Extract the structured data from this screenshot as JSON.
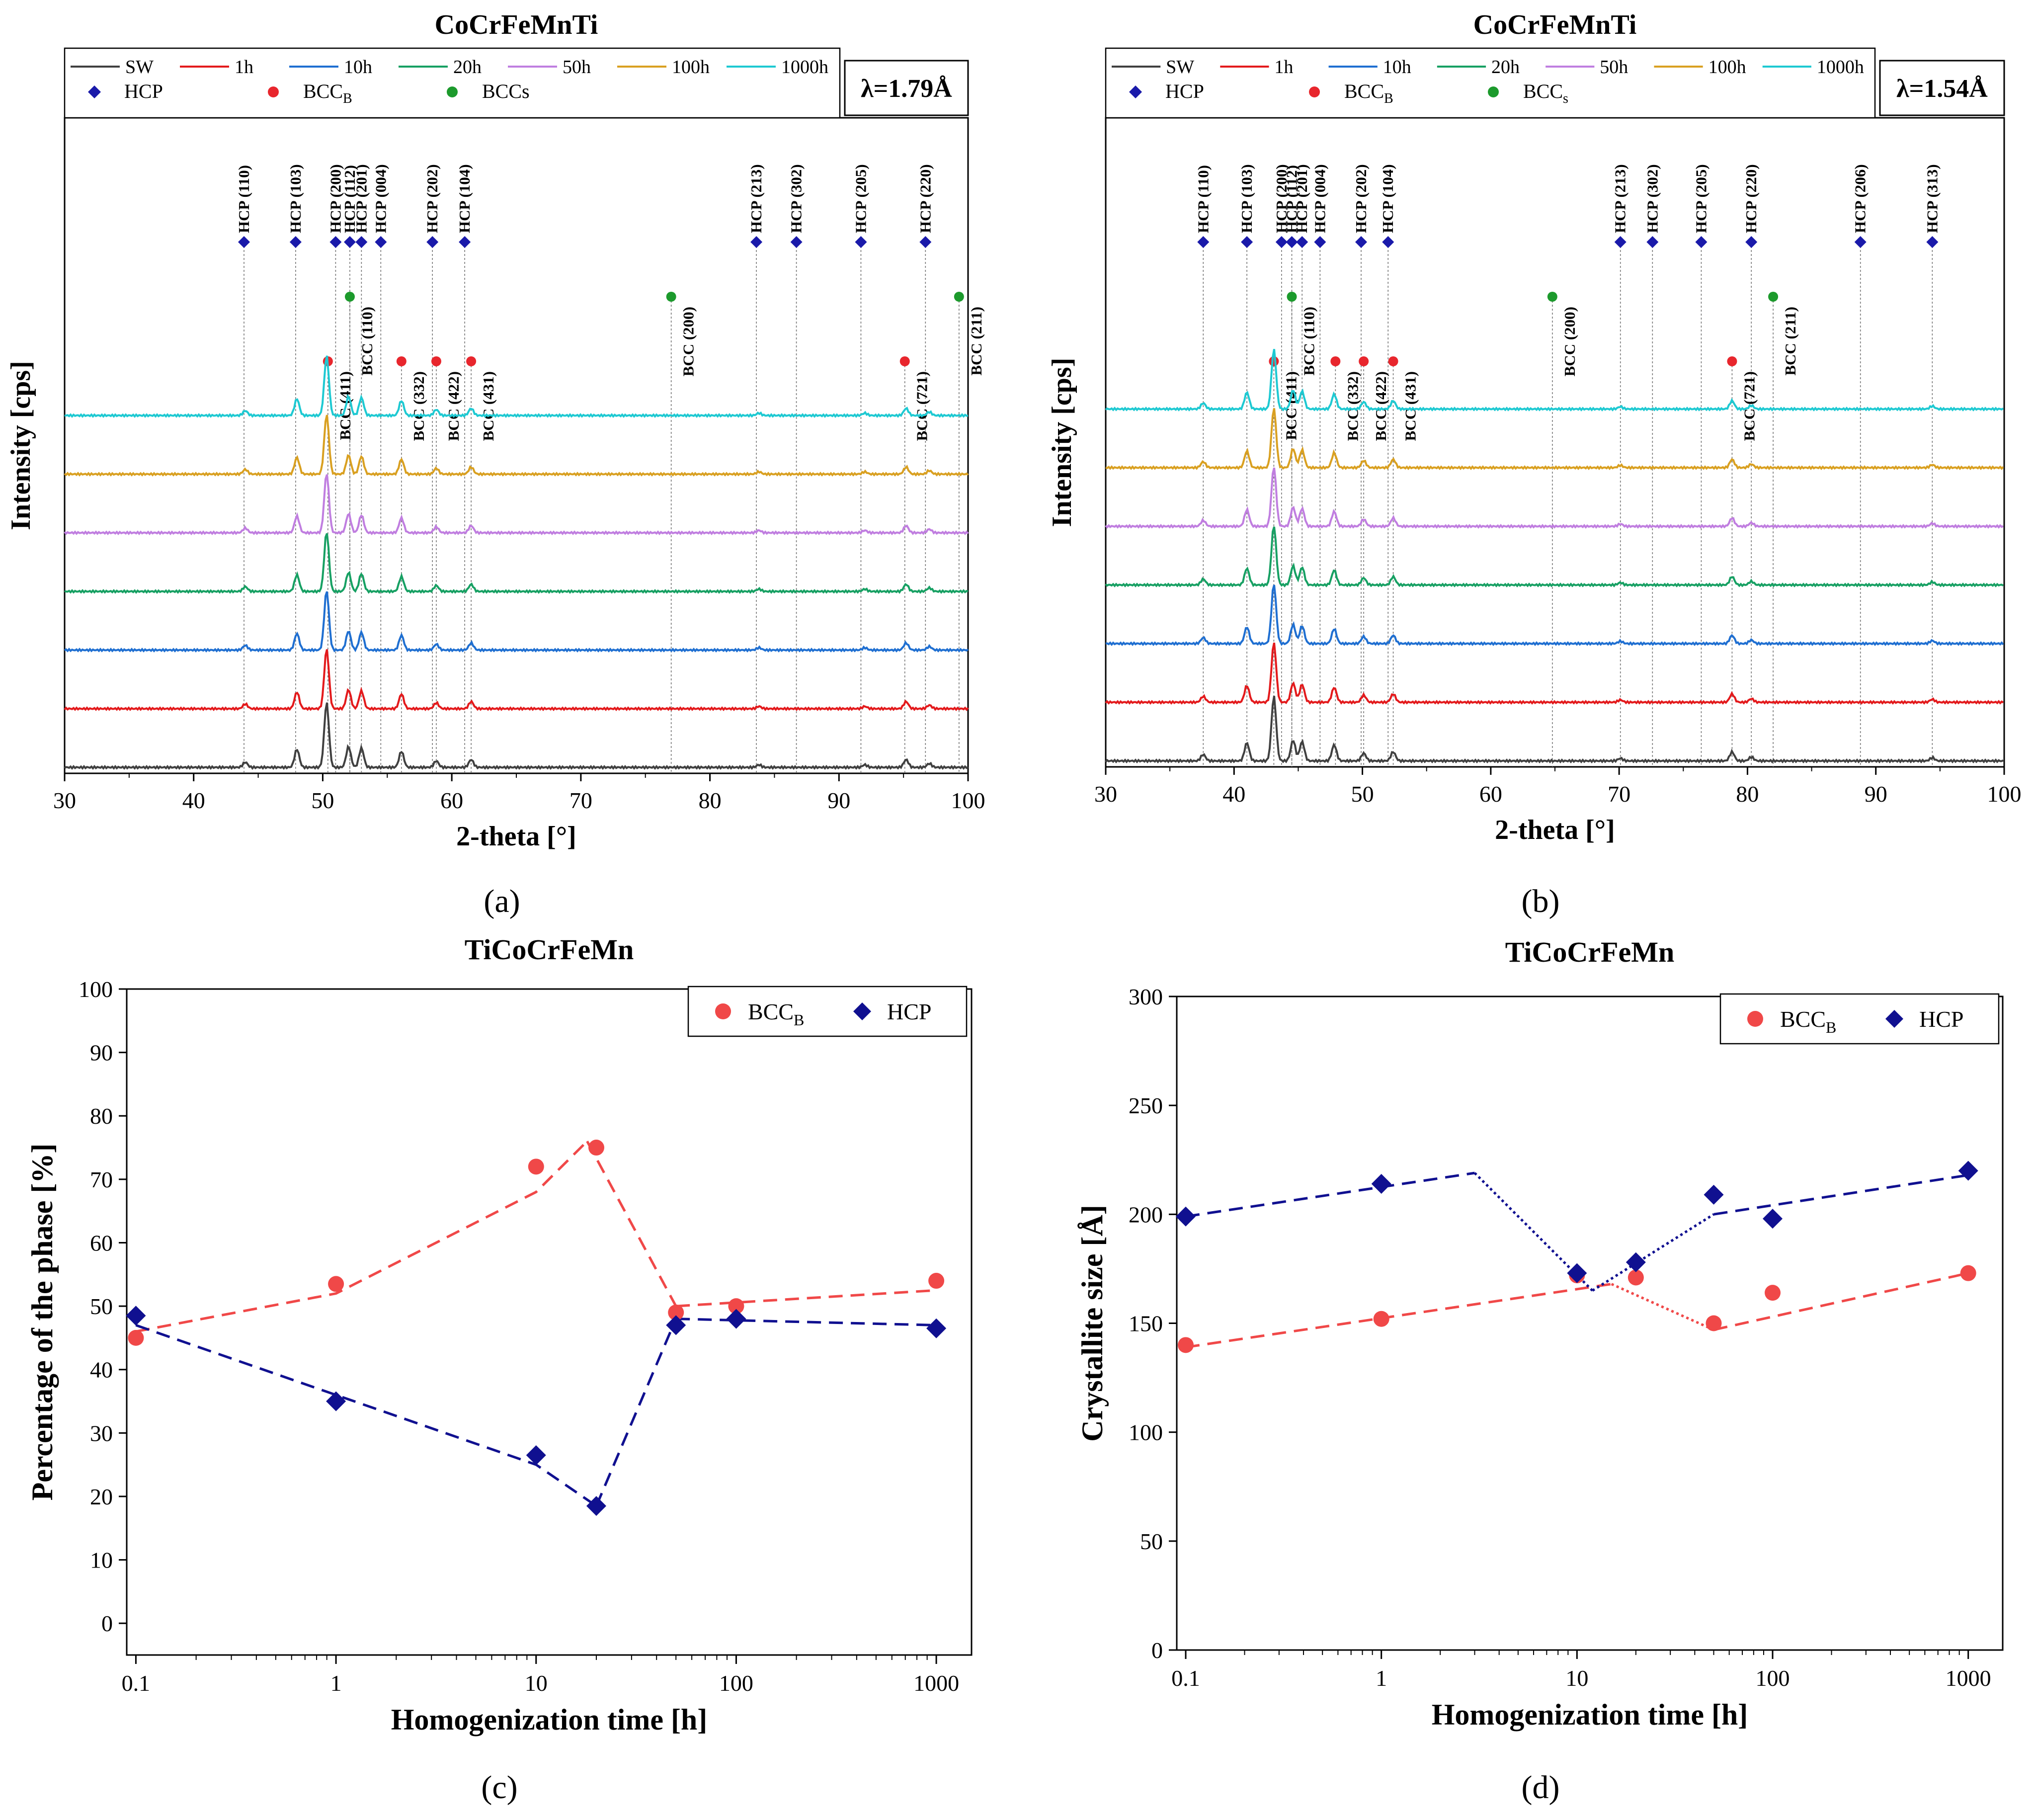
{
  "figure": {
    "panel_labels": [
      "(a)",
      "(b)",
      "(c)",
      "(d)"
    ]
  },
  "chart_data": [
    {
      "id": "a",
      "type": "line",
      "title": "CoCrFeMnTi",
      "xlabel": "2-theta [°]",
      "ylabel": "Intensity [cps]",
      "xlim": [
        30,
        100
      ],
      "xticks": [
        30,
        40,
        50,
        60,
        70,
        80,
        90,
        100
      ],
      "wavelength": "λ=1.79Å",
      "legend_lines": [
        {
          "label": "SW",
          "color": "#404040"
        },
        {
          "label": "1h",
          "color": "#e31a1c"
        },
        {
          "label": "10h",
          "color": "#1f6fd1"
        },
        {
          "label": "20h",
          "color": "#17a063"
        },
        {
          "label": "50h",
          "color": "#c07ee0"
        },
        {
          "label": "100h",
          "color": "#d9a021"
        },
        {
          "label": "1000h",
          "color": "#1ec9d2"
        }
      ],
      "legend_markers": [
        {
          "label": "HCP",
          "symbol": "diamond",
          "color": "#1a1aaa"
        },
        {
          "label": "BCC",
          "sub": "B",
          "symbol": "circle",
          "color": "#e8262d"
        },
        {
          "label": "BCCs",
          "sub": "",
          "symbol": "circle",
          "color": "#1c9a2c"
        }
      ],
      "series": [
        {
          "name": "SW",
          "color": "#404040"
        },
        {
          "name": "1h",
          "color": "#e31a1c"
        },
        {
          "name": "10h",
          "color": "#1f6fd1"
        },
        {
          "name": "20h",
          "color": "#17a063"
        },
        {
          "name": "50h",
          "color": "#c07ee0"
        },
        {
          "name": "100h",
          "color": "#d9a021"
        },
        {
          "name": "1000h",
          "color": "#1ec9d2"
        }
      ],
      "peaks": [
        {
          "pos": 50.3,
          "h": 1.0
        },
        {
          "pos": 48.0,
          "h": 0.28
        },
        {
          "pos": 52.0,
          "h": 0.32
        },
        {
          "pos": 53.0,
          "h": 0.3
        },
        {
          "pos": 56.1,
          "h": 0.25
        },
        {
          "pos": 58.8,
          "h": 0.1
        },
        {
          "pos": 61.5,
          "h": 0.12
        },
        {
          "pos": 44.0,
          "h": 0.08
        },
        {
          "pos": 95.2,
          "h": 0.12
        },
        {
          "pos": 97.0,
          "h": 0.06
        },
        {
          "pos": 83.8,
          "h": 0.04
        },
        {
          "pos": 92.0,
          "h": 0.04
        }
      ],
      "hcp_markers": [
        {
          "label": "HCP (110)",
          "pos": 43.9
        },
        {
          "label": "HCP (103)",
          "pos": 47.9
        },
        {
          "label": "HCP (200)",
          "pos": 51.0
        },
        {
          "label": "HCP (112)",
          "pos": 52.1
        },
        {
          "label": "HCP (201)",
          "pos": 53.0
        },
        {
          "label": "HCP (004)",
          "pos": 54.5
        },
        {
          "label": "HCP (202)",
          "pos": 58.5
        },
        {
          "label": "HCP (104)",
          "pos": 61.0
        },
        {
          "label": "HCP (213)",
          "pos": 83.6
        },
        {
          "label": "HCP (302)",
          "pos": 86.7
        },
        {
          "label": "HCP (205)",
          "pos": 91.7
        },
        {
          "label": "HCP (220)",
          "pos": 96.7
        }
      ],
      "bccs_markers": [
        {
          "label": "BCC (110)",
          "pos": 52.1
        },
        {
          "label": "BCC (200)",
          "pos": 77.0
        },
        {
          "label": "BCC (211)",
          "pos": 99.3
        }
      ],
      "bccb_markers": [
        {
          "label": "BCC (411)",
          "pos": 50.4
        },
        {
          "label": "BCC (332)",
          "pos": 56.1
        },
        {
          "label": "BCC (422)",
          "pos": 58.8
        },
        {
          "label": "BCC (431)",
          "pos": 61.5
        },
        {
          "label": "BCC (721)",
          "pos": 95.1
        }
      ]
    },
    {
      "id": "b",
      "type": "line",
      "title": "CoCrFeMnTi",
      "xlabel": "2-theta [°]",
      "ylabel": "Intensity [cps]",
      "xlim": [
        30,
        100
      ],
      "xticks": [
        30,
        40,
        50,
        60,
        70,
        80,
        90,
        100
      ],
      "wavelength": "λ=1.54Å",
      "legend_lines": [
        {
          "label": "SW",
          "color": "#404040"
        },
        {
          "label": "1h",
          "color": "#e31a1c"
        },
        {
          "label": "10h",
          "color": "#1f6fd1"
        },
        {
          "label": "20h",
          "color": "#17a063"
        },
        {
          "label": "50h",
          "color": "#c07ee0"
        },
        {
          "label": "100h",
          "color": "#d9a021"
        },
        {
          "label": "1000h",
          "color": "#1ec9d2"
        }
      ],
      "legend_markers": [
        {
          "label": "HCP",
          "symbol": "diamond",
          "color": "#1a1aaa"
        },
        {
          "label": "BCC",
          "sub": "B",
          "symbol": "circle",
          "color": "#e8262d"
        },
        {
          "label": "BCC",
          "sub": "s",
          "symbol": "circle",
          "color": "#1c9a2c"
        }
      ],
      "series": [
        {
          "name": "SW",
          "color": "#404040"
        },
        {
          "name": "1h",
          "color": "#e31a1c"
        },
        {
          "name": "10h",
          "color": "#1f6fd1"
        },
        {
          "name": "20h",
          "color": "#17a063"
        },
        {
          "name": "50h",
          "color": "#c07ee0"
        },
        {
          "name": "100h",
          "color": "#d9a021"
        },
        {
          "name": "1000h",
          "color": "#1ec9d2"
        }
      ],
      "peaks": [
        {
          "pos": 43.1,
          "h": 1.0
        },
        {
          "pos": 41.0,
          "h": 0.28
        },
        {
          "pos": 44.6,
          "h": 0.32
        },
        {
          "pos": 45.3,
          "h": 0.3
        },
        {
          "pos": 47.8,
          "h": 0.25
        },
        {
          "pos": 50.1,
          "h": 0.12
        },
        {
          "pos": 52.4,
          "h": 0.14
        },
        {
          "pos": 37.6,
          "h": 0.1
        },
        {
          "pos": 78.8,
          "h": 0.14
        },
        {
          "pos": 80.3,
          "h": 0.06
        },
        {
          "pos": 70.1,
          "h": 0.04
        },
        {
          "pos": 94.4,
          "h": 0.05
        }
      ],
      "hcp_markers": [
        {
          "label": "HCP (110)",
          "pos": 37.6
        },
        {
          "label": "HCP (103)",
          "pos": 41.0
        },
        {
          "label": "HCP (200)",
          "pos": 43.7
        },
        {
          "label": "HCP (112)",
          "pos": 44.5
        },
        {
          "label": "HCP (201)",
          "pos": 45.3
        },
        {
          "label": "HCP (004)",
          "pos": 46.7
        },
        {
          "label": "HCP (202)",
          "pos": 49.9
        },
        {
          "label": "HCP (104)",
          "pos": 52.0
        },
        {
          "label": "HCP (213)",
          "pos": 70.1
        },
        {
          "label": "HCP (302)",
          "pos": 72.6
        },
        {
          "label": "HCP (205)",
          "pos": 76.4
        },
        {
          "label": "HCP (220)",
          "pos": 80.3
        },
        {
          "label": "HCP (206)",
          "pos": 88.8
        },
        {
          "label": "HCP (313)",
          "pos": 94.4
        }
      ],
      "bccs_markers": [
        {
          "label": "BCC (110)",
          "pos": 44.5
        },
        {
          "label": "BCC (200)",
          "pos": 64.8
        },
        {
          "label": "BCC (211)",
          "pos": 82.0
        }
      ],
      "bccb_markers": [
        {
          "label": "BCC (411)",
          "pos": 43.1
        },
        {
          "label": "BCC (332)",
          "pos": 47.9
        },
        {
          "label": "BCC (422)",
          "pos": 50.1
        },
        {
          "label": "BCC (431)",
          "pos": 52.4
        },
        {
          "label": "BCC (721)",
          "pos": 78.8
        }
      ]
    },
    {
      "id": "c",
      "type": "scatter",
      "title": "TiCoCrFeMn",
      "xlabel": "Homogenization time [h]",
      "ylabel": "Percentage of the phase [%]",
      "xscale": "log",
      "xlim": [
        0.09,
        1500
      ],
      "ylim": [
        -5,
        100
      ],
      "xticks": [
        0.1,
        1,
        10,
        100,
        1000
      ],
      "xtick_labels": [
        "0.1",
        "1",
        "10",
        "100",
        "1000"
      ],
      "yticks": [
        0,
        10,
        20,
        30,
        40,
        50,
        60,
        70,
        80,
        90,
        100
      ],
      "legend": [
        {
          "label": "BCC",
          "sub": "B",
          "symbol": "circle",
          "color": "#f04848"
        },
        {
          "label": "HCP",
          "sub": "",
          "symbol": "diamond",
          "color": "#101090"
        }
      ],
      "series": [
        {
          "name": "BCCB",
          "color": "#f04848",
          "symbol": "circle",
          "x": [
            0.1,
            1,
            10,
            20,
            50,
            100,
            1000
          ],
          "values": [
            45,
            53.5,
            72,
            75,
            49,
            50,
            54
          ]
        },
        {
          "name": "HCP",
          "color": "#101090",
          "symbol": "diamond",
          "x": [
            0.1,
            1,
            10,
            20,
            50,
            100,
            1000
          ],
          "values": [
            48.5,
            35,
            26.5,
            18.5,
            47,
            48,
            46.5
          ]
        }
      ],
      "trend_lines": [
        {
          "color": "#f04848",
          "style": "dashed",
          "x": [
            0.1,
            1,
            10,
            18
          ],
          "values": [
            46,
            52,
            68,
            76
          ]
        },
        {
          "color": "#f04848",
          "style": "dashed",
          "x": [
            18,
            50
          ],
          "values": [
            76,
            50
          ]
        },
        {
          "color": "#f04848",
          "style": "dashed",
          "x": [
            50,
            1000
          ],
          "values": [
            50,
            52.5
          ]
        },
        {
          "color": "#101090",
          "style": "dashed",
          "x": [
            0.1,
            10,
            20
          ],
          "values": [
            47,
            25,
            18.5
          ]
        },
        {
          "color": "#101090",
          "style": "dashed",
          "x": [
            20,
            50
          ],
          "values": [
            18.5,
            48
          ]
        },
        {
          "color": "#101090",
          "style": "dashed",
          "x": [
            50,
            1000
          ],
          "values": [
            48,
            47
          ]
        }
      ]
    },
    {
      "id": "d",
      "type": "scatter",
      "title": "TiCoCrFeMn",
      "xlabel": "Homogenization time [h]",
      "ylabel": "Crystallite size [Å]",
      "xscale": "log",
      "xlim": [
        0.09,
        1500
      ],
      "ylim": [
        0,
        300
      ],
      "xticks": [
        0.1,
        1,
        10,
        100,
        1000
      ],
      "xtick_labels": [
        "0.1",
        "1",
        "10",
        "100",
        "1000"
      ],
      "yticks": [
        0,
        50,
        100,
        150,
        200,
        250,
        300
      ],
      "legend": [
        {
          "label": "BCC",
          "sub": "B",
          "symbol": "circle",
          "color": "#f04848"
        },
        {
          "label": "HCP",
          "sub": "",
          "symbol": "diamond",
          "color": "#101090"
        }
      ],
      "series": [
        {
          "name": "BCCB",
          "color": "#f04848",
          "symbol": "circle",
          "x": [
            0.1,
            1,
            10,
            20,
            50,
            100,
            1000
          ],
          "values": [
            140,
            152,
            172,
            171,
            150,
            164,
            173
          ]
        },
        {
          "name": "HCP",
          "color": "#101090",
          "symbol": "diamond",
          "x": [
            0.1,
            1,
            10,
            20,
            50,
            100,
            1000
          ],
          "values": [
            199,
            214,
            173,
            178,
            209,
            198,
            220
          ]
        }
      ],
      "trend_lines": [
        {
          "color": "#f04848",
          "style": "dashed",
          "x": [
            0.1,
            15
          ],
          "values": [
            139,
            168
          ]
        },
        {
          "color": "#f04848",
          "style": "dotted",
          "x": [
            15,
            50
          ],
          "values": [
            168,
            147
          ]
        },
        {
          "color": "#f04848",
          "style": "dashed",
          "x": [
            50,
            1000
          ],
          "values": [
            147,
            173
          ]
        },
        {
          "color": "#101090",
          "style": "dashed",
          "x": [
            0.1,
            3
          ],
          "values": [
            199,
            219
          ]
        },
        {
          "color": "#101090",
          "style": "dotted",
          "x": [
            3,
            12
          ],
          "values": [
            219,
            165
          ]
        },
        {
          "color": "#101090",
          "style": "dotted",
          "x": [
            12,
            50
          ],
          "values": [
            165,
            200
          ]
        },
        {
          "color": "#101090",
          "style": "dashed",
          "x": [
            50,
            1000
          ],
          "values": [
            200,
            218
          ]
        }
      ]
    }
  ]
}
